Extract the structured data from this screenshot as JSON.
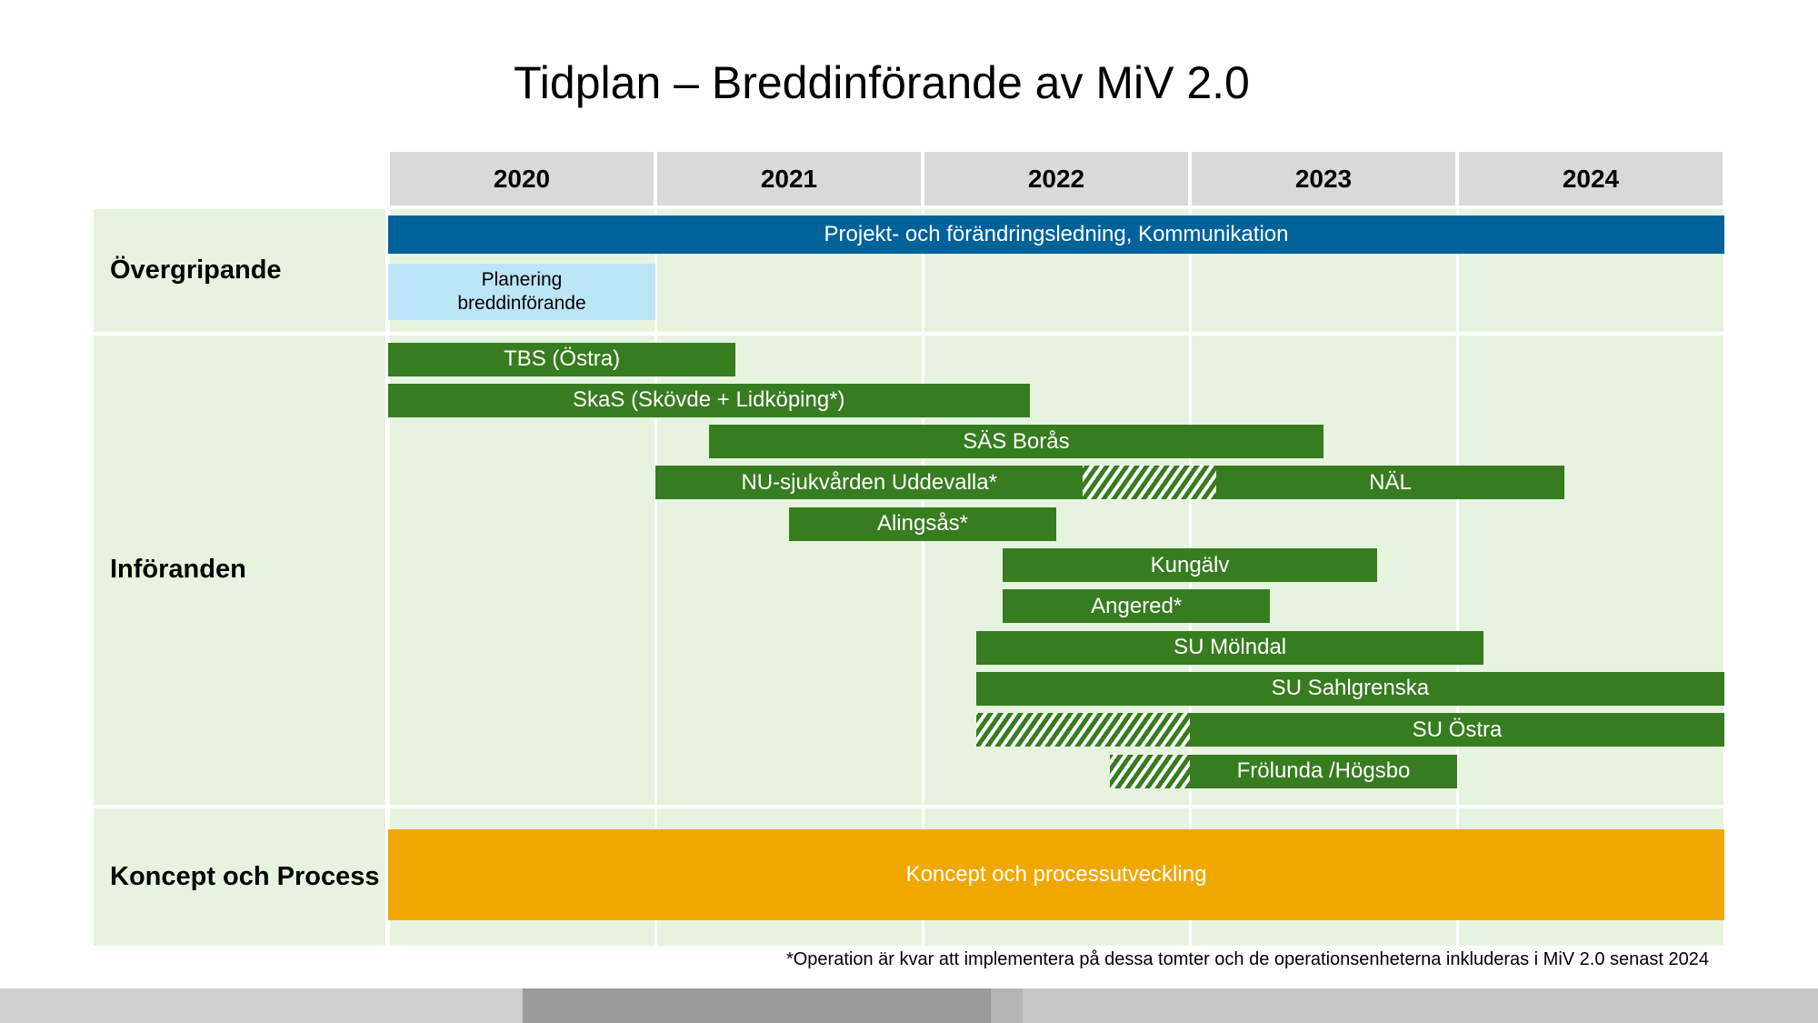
{
  "chart_data": {
    "type": "gantt",
    "title": "Tidplan – Breddinförande av MiV 2.0",
    "years": [
      "2020",
      "2021",
      "2022",
      "2023",
      "2024"
    ],
    "xlim": [
      2020,
      2025
    ],
    "grid": true,
    "groups": [
      {
        "name": "Övergripande",
        "rows": [
          [
            {
              "label": "Projekt- och förändringsledning, Kommunikation",
              "start": 2020,
              "end": 2025,
              "color": "#00629b"
            }
          ],
          [
            {
              "label": "Planering\nbreddinförande",
              "start": 2020,
              "end": 2021,
              "color": "#bde5f8"
            }
          ]
        ]
      },
      {
        "name": "Införanden",
        "rows": [
          [
            {
              "label": "TBS (Östra)",
              "start": 2020,
              "end": 2021.3,
              "color": "#387c20"
            }
          ],
          [
            {
              "label": "SkaS (Skövde + Lidköping*)",
              "start": 2020,
              "end": 2022.4,
              "color": "#387c20"
            }
          ],
          [
            {
              "label": "SÄS Borås",
              "start": 2021.2,
              "end": 2023.5,
              "color": "#387c20"
            }
          ],
          [
            {
              "label": "NU-sjukvården Uddevalla*",
              "start": 2021,
              "end": 2022.6,
              "color": "#387c20"
            },
            {
              "start": 2022.6,
              "end": 2023.1,
              "color": "#387c20",
              "hatched": true
            },
            {
              "label": "NÄL",
              "start": 2023.1,
              "end": 2024.4,
              "color": "#387c20"
            }
          ],
          [
            {
              "label": "Alingsås*",
              "start": 2021.5,
              "end": 2022.5,
              "color": "#387c20"
            }
          ],
          [
            {
              "label": "Kungälv",
              "start": 2022.3,
              "end": 2023.7,
              "color": "#387c20"
            }
          ],
          [
            {
              "label": "Angered*",
              "start": 2022.3,
              "end": 2023.3,
              "color": "#387c20"
            }
          ],
          [
            {
              "label": "SU Mölndal",
              "start": 2022.2,
              "end": 2024.1,
              "color": "#387c20"
            }
          ],
          [
            {
              "label": "SU Sahlgrenska",
              "start": 2022.2,
              "end": 2025,
              "color": "#387c20"
            }
          ],
          [
            {
              "start": 2022.2,
              "end": 2023,
              "color": "#387c20",
              "hatched": true
            },
            {
              "label": "SU Östra",
              "start": 2023,
              "end": 2025,
              "color": "#387c20"
            }
          ],
          [
            {
              "start": 2022.7,
              "end": 2023,
              "color": "#387c20",
              "hatched": true
            },
            {
              "label": "Frölunda /Högsbo",
              "start": 2023,
              "end": 2024,
              "color": "#387c20"
            }
          ]
        ]
      },
      {
        "name": "Koncept och Process",
        "rows": [
          [
            {
              "label": "Koncept och processutveckling",
              "start": 2020,
              "end": 2025,
              "color": "#f0a800"
            }
          ]
        ]
      }
    ],
    "footnote": "*Operation är kvar att implementera på dessa tomter och de operationsenheterna inkluderas i MiV 2.0 senast 2024"
  }
}
